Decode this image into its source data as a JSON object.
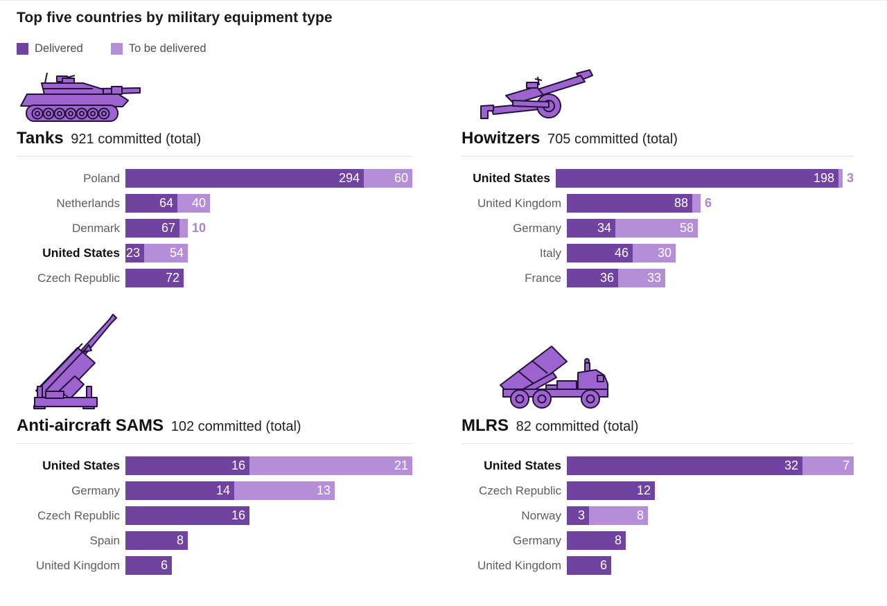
{
  "page": {
    "title": "Top five countries by military equipment type"
  },
  "legend": {
    "items": [
      {
        "key": "delivered",
        "label": "Delivered"
      },
      {
        "key": "to_be_delivered",
        "label": "To be delivered"
      }
    ]
  },
  "colors": {
    "delivered": "#7143a1",
    "to_be_delivered": "#b48fd7",
    "value_inside": "#ffffff",
    "value_outside": "#ab82d4",
    "label_gray": "#5d5d5d",
    "label_bold": "#111111",
    "divider": "#e4e4e4",
    "icon_fill": "#9d64d0",
    "icon_stroke": "#22123a"
  },
  "chart_data": [
    {
      "type": "bar",
      "orientation": "horizontal",
      "stacked": true,
      "icon": "tank-icon",
      "title": "Tanks",
      "committed_total": 921,
      "subtitle": "921 committed (total)",
      "series": [
        "Delivered",
        "To be delivered"
      ],
      "rows": [
        {
          "country": "Poland",
          "delivered": 294,
          "to_be_delivered": 60,
          "bold": false
        },
        {
          "country": "Netherlands",
          "delivered": 64,
          "to_be_delivered": 40,
          "bold": false
        },
        {
          "country": "Denmark",
          "delivered": 67,
          "to_be_delivered": 10,
          "bold": false
        },
        {
          "country": "United States",
          "delivered": 23,
          "to_be_delivered": 54,
          "bold": true
        },
        {
          "country": "Czech Republic",
          "delivered": 72,
          "to_be_delivered": 0,
          "bold": false
        }
      ]
    },
    {
      "type": "bar",
      "orientation": "horizontal",
      "stacked": true,
      "icon": "howitzer-icon",
      "title": "Howitzers",
      "committed_total": 705,
      "subtitle": "705 committed (total)",
      "series": [
        "Delivered",
        "To be delivered"
      ],
      "rows": [
        {
          "country": "United States",
          "delivered": 198,
          "to_be_delivered": 3,
          "bold": true
        },
        {
          "country": "United Kingdom",
          "delivered": 88,
          "to_be_delivered": 6,
          "bold": false
        },
        {
          "country": "Germany",
          "delivered": 34,
          "to_be_delivered": 58,
          "bold": false
        },
        {
          "country": "Italy",
          "delivered": 46,
          "to_be_delivered": 30,
          "bold": false
        },
        {
          "country": "France",
          "delivered": 36,
          "to_be_delivered": 33,
          "bold": false
        }
      ]
    },
    {
      "type": "bar",
      "orientation": "horizontal",
      "stacked": true,
      "icon": "sam-launcher-icon",
      "title": "Anti-aircraft SAMS",
      "committed_total": 102,
      "subtitle": "102 committed (total)",
      "series": [
        "Delivered",
        "To be delivered"
      ],
      "rows": [
        {
          "country": "United States",
          "delivered": 16,
          "to_be_delivered": 21,
          "bold": true
        },
        {
          "country": "Germany",
          "delivered": 14,
          "to_be_delivered": 13,
          "bold": false
        },
        {
          "country": "Czech Republic",
          "delivered": 16,
          "to_be_delivered": 0,
          "bold": false
        },
        {
          "country": "Spain",
          "delivered": 8,
          "to_be_delivered": 0,
          "bold": false
        },
        {
          "country": "United Kingdom",
          "delivered": 6,
          "to_be_delivered": 0,
          "bold": false
        }
      ]
    },
    {
      "type": "bar",
      "orientation": "horizontal",
      "stacked": true,
      "icon": "mlrs-icon",
      "title": "MLRS",
      "committed_total": 82,
      "subtitle": "82 committed (total)",
      "series": [
        "Delivered",
        "To be delivered"
      ],
      "rows": [
        {
          "country": "United States",
          "delivered": 32,
          "to_be_delivered": 7,
          "bold": true
        },
        {
          "country": "Czech Republic",
          "delivered": 12,
          "to_be_delivered": 0,
          "bold": false
        },
        {
          "country": "Norway",
          "delivered": 3,
          "to_be_delivered": 8,
          "bold": false
        },
        {
          "country": "Germany",
          "delivered": 8,
          "to_be_delivered": 0,
          "bold": false
        },
        {
          "country": "United Kingdom",
          "delivered": 6,
          "to_be_delivered": 0,
          "bold": false
        }
      ]
    }
  ]
}
